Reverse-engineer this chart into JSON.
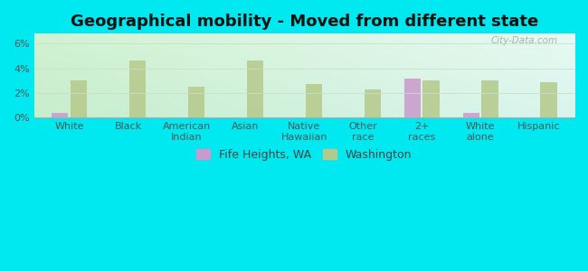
{
  "title": "Geographical mobility - Moved from different state",
  "categories": [
    "White",
    "Black",
    "American\nIndian",
    "Asian",
    "Native\nHawaiian",
    "Other\nrace",
    "2+\nraces",
    "White\nalone",
    "Hispanic"
  ],
  "fife_heights": [
    0.35,
    0.0,
    0.0,
    0.0,
    0.0,
    0.0,
    3.2,
    0.35,
    0.0
  ],
  "washington": [
    3.0,
    4.65,
    2.5,
    4.65,
    2.7,
    2.3,
    3.0,
    3.0,
    2.9
  ],
  "fife_color": "#cc99cc",
  "washington_color": "#b5c98a",
  "background_outer": "#00e8f0",
  "background_inner_tl": "#d4efcc",
  "background_inner_tr": "#eaf5f0",
  "background_inner_bl": "#c8ecd8",
  "ylim": [
    0,
    6.8
  ],
  "yticks": [
    0,
    2,
    4,
    6
  ],
  "ytick_labels": [
    "0%",
    "2%",
    "4%",
    "6%"
  ],
  "bar_width": 0.28,
  "legend_fife": "Fife Heights, WA",
  "legend_washington": "Washington",
  "title_fontsize": 13,
  "axis_fontsize": 8,
  "legend_fontsize": 9
}
